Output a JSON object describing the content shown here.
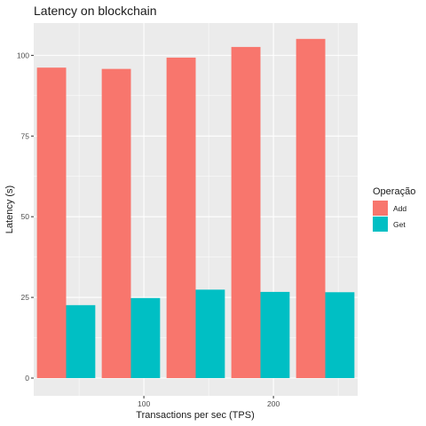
{
  "chart_data": {
    "type": "bar",
    "title": "Latency on blockchain",
    "xlabel": "Transactions per sec (TPS)",
    "ylabel": "Latency (s)",
    "x": [
      40,
      90,
      140,
      190,
      240
    ],
    "x_ticks": [
      100,
      200
    ],
    "xlim": [
      15,
      265
    ],
    "ylim": [
      -5.5,
      110
    ],
    "y_ticks": [
      0,
      25,
      50,
      75,
      100
    ],
    "grid": true,
    "legend_position": "right",
    "legend_title": "Operação",
    "series": [
      {
        "name": "Add",
        "color": "#F8766D",
        "values": [
          96.2,
          95.8,
          99.3,
          102.6,
          105.1
        ]
      },
      {
        "name": "Get",
        "color": "#00BFC4",
        "values": [
          22.6,
          24.8,
          27.4,
          26.7,
          26.6
        ]
      }
    ],
    "panel_background": "#EBEBEB",
    "grid_color": "#FFFFFF"
  }
}
